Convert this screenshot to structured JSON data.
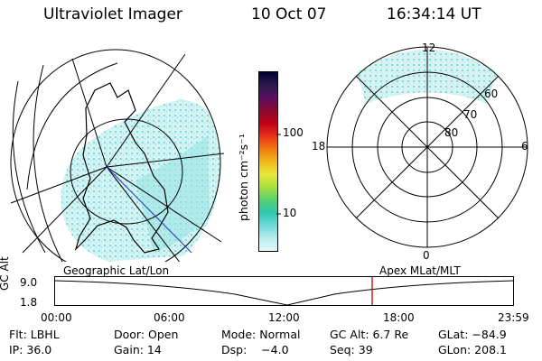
{
  "header": {
    "instrument": "Ultraviolet Imager",
    "date": "10 Oct 07",
    "time": "16:34:14 UT"
  },
  "colorbar": {
    "unit_label": "photon cm⁻²s⁻¹",
    "ticks": [
      "100",
      "10"
    ],
    "colors": [
      "#000033",
      "#2a1a4a",
      "#5a1060",
      "#8a0a30",
      "#c00018",
      "#e8301a",
      "#f07a10",
      "#f0b818",
      "#e8e83a",
      "#a8e040",
      "#56d070",
      "#30c8b0",
      "#70d8d8",
      "#b8eeee",
      "#e6f8f8"
    ]
  },
  "geo_map": {
    "projection": "geographic",
    "fill_color": "#c8eef0"
  },
  "polar_plot": {
    "mlt_labels": [
      "12",
      "18",
      "6",
      "0"
    ],
    "mlat_labels": [
      "60",
      "70",
      "80"
    ]
  },
  "altitude_panel": {
    "y_label": "GC Alt",
    "y_ticks": [
      "9.0",
      "1.8"
    ],
    "left_title": "Geographic Lat/Lon",
    "right_title": "Apex MLat/MLT",
    "x_ticks": [
      "00:00",
      "06:00",
      "12:00",
      "18:00",
      "23:59"
    ],
    "marker_color": "#d01010"
  },
  "status": {
    "row1": {
      "filter": "Flt: LBHL",
      "door": "Door: Open",
      "mode": "Mode: Normal",
      "gc_alt": "GC Alt: 6.7 Re",
      "glat": "GLat: −84.9"
    },
    "row2": {
      "ip": "IP: 36.0",
      "gain": "Gain: 14",
      "dsp": "Dsp:    −4.0",
      "seq": "Seq: 39",
      "glon": "GLon: 208.1"
    }
  }
}
